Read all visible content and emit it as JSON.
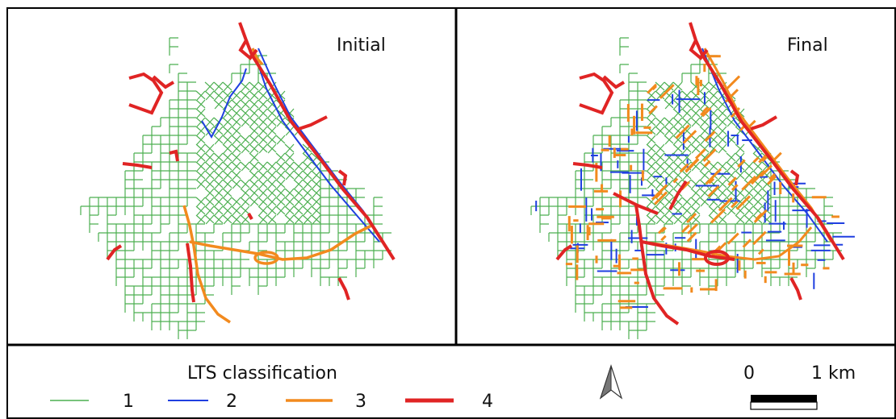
{
  "panels": [
    {
      "title": "Initial"
    },
    {
      "title": "Final"
    }
  ],
  "legend": {
    "title": "LTS classification",
    "classes": [
      {
        "label": "1",
        "color": "#4caf50"
      },
      {
        "label": "2",
        "color": "#1f3fe0"
      },
      {
        "label": "3",
        "color": "#f28a1e"
      },
      {
        "label": "4",
        "color": "#e02424"
      }
    ]
  },
  "north_arrow": {
    "icon": "north-arrow-icon"
  },
  "scale_bar": {
    "start_label": "0",
    "end_label": "1 km"
  },
  "colors": {
    "lts1": "#4caf50",
    "lts2": "#1f3fe0",
    "lts3": "#f28a1e",
    "lts4": "#e02424",
    "frame": "#000000"
  }
}
